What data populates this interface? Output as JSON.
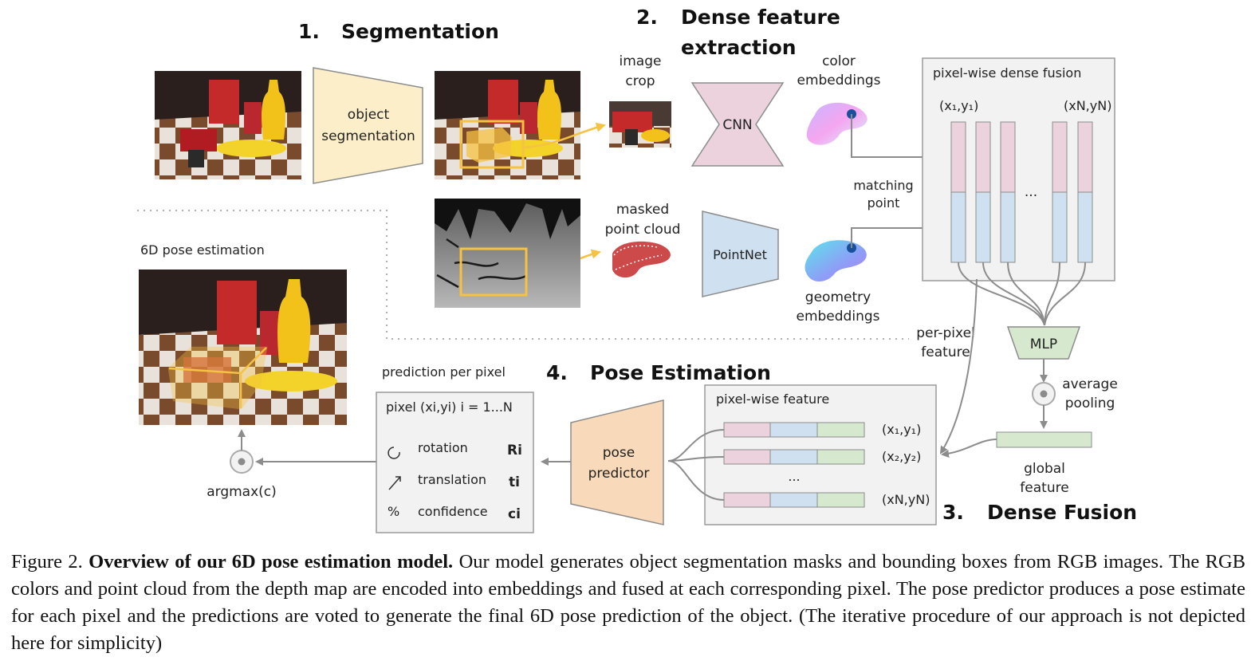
{
  "stages": {
    "s1_num": "1.",
    "s1_label": "Segmentation",
    "s2_num": "2.",
    "s2_label_line1": "Dense feature",
    "s2_label_line2": "extraction",
    "s3_num": "3.",
    "s3_label": "Dense Fusion",
    "s4_num": "4.",
    "s4_label": "Pose Estimation"
  },
  "blocks": {
    "object_segmentation": [
      "object",
      "segmentation"
    ],
    "cnn": "CNN",
    "pointnet": "PointNet",
    "mlp": "MLP",
    "pose_predictor": [
      "pose",
      "predictor"
    ]
  },
  "labels": {
    "image_crop": [
      "image",
      "crop"
    ],
    "masked_point_cloud": [
      "masked",
      "point cloud"
    ],
    "color_embeddings": [
      "color",
      "embeddings"
    ],
    "geometry_embeddings": [
      "geometry",
      "embeddings"
    ],
    "matching_point": [
      "matching",
      "point"
    ],
    "pixel_wise_dense_fusion": "pixel-wise dense fusion",
    "fusion_col_first": "(x₁,y₁)",
    "fusion_col_last": "(xN,yN)",
    "fusion_ellipsis": "...",
    "per_pixel_feature": [
      "per-pixel",
      "feature"
    ],
    "average_pooling": [
      "average",
      "pooling"
    ],
    "global_feature": [
      "global",
      "feature"
    ],
    "pixel_wise_feature": "pixel-wise feature",
    "feature_rows": [
      "(x₁,y₁)",
      "(x₂,y₂)",
      "(xN,yN)"
    ],
    "feature_ellipsis": "...",
    "pose_6d": "6D pose estimation",
    "prediction_per_pixel": "prediction per pixel",
    "argmax": "argmax(c)"
  },
  "prediction_box": {
    "header": "pixel (xi,yi)   i = 1...N",
    "rows": [
      {
        "icon": "rotation-icon",
        "label": "rotation",
        "symbol": "Ri"
      },
      {
        "icon": "translation-icon",
        "label": "translation",
        "symbol": "ti"
      },
      {
        "icon": "percent-icon",
        "label": "confidence",
        "symbol": "ci"
      }
    ]
  },
  "caption": {
    "prefix": "Figure 2.",
    "bold": "Overview of our 6D pose estimation model.",
    "text": "Our model generates object segmentation masks and bounding boxes from RGB images. The RGB colors and point cloud from the depth map are encoded into embeddings and fused at each corresponding pixel. The pose predictor produces a pose estimate for each pixel and the predictions are voted to generate the final 6D pose prediction of the object. (The iterative procedure of our approach is not depicted here for simplicity)"
  },
  "colors": {
    "seg_block": "#fbeec8",
    "cnn_block": "#ecd2dc",
    "pointnet_block": "#cfe0f1",
    "mlp_block": "#d6e9cf",
    "pose_block": "#f8d9b9",
    "panel_fill": "#f2f2f2",
    "arrow": "#8c8c8c",
    "highlight": "#f5c242"
  }
}
